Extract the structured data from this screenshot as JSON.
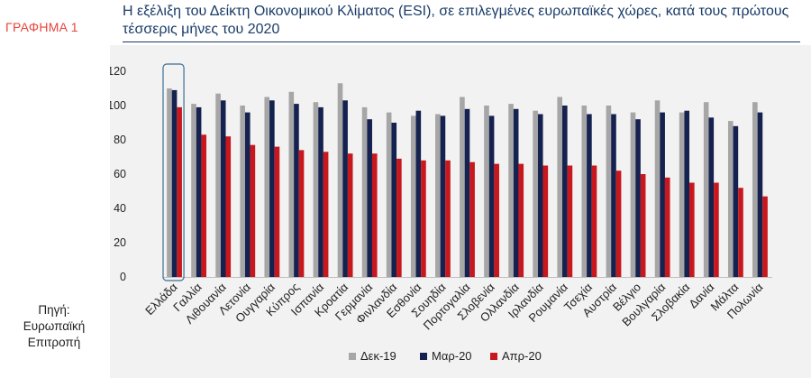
{
  "figure_label": "ΓΡΑΦΗΜΑ 1",
  "source": {
    "line1": "Πηγή:",
    "line2": "Ευρωπαϊκή",
    "line3": "Επιτροπή"
  },
  "chart_data": {
    "type": "bar",
    "title_line1": "Η εξέλιξη του Δείκτη Οικονομικού Κλίματος (ESI), σε επιλεγμένες ευρωπαϊκές χώρες, κατά τους πρώτους",
    "title_line2": "τέσσερις μήνες του 2020",
    "ylim": [
      0,
      120
    ],
    "yticks": [
      0,
      20,
      40,
      60,
      80,
      100,
      120
    ],
    "categories": [
      "Ελλάδα",
      "Γαλλία",
      "Λιθουανία",
      "Λετονία",
      "Ουγγαρία",
      "Κύπρος",
      "Ισπανία",
      "Κροατία",
      "Γερμανία",
      "Φινλανδία",
      "Εσθονία",
      "Σουηδία",
      "Πορτογαλία",
      "Σλοβενία",
      "Ολλανδία",
      "Ιρλανδία",
      "Ρουμανία",
      "Τσεχία",
      "Αυστρία",
      "Βέλγιο",
      "Βουλγαρία",
      "Σλοβακία",
      "Δανία",
      "Μάλτα",
      "Πολωνία"
    ],
    "series": [
      {
        "name": "Δεκ-19",
        "color": "#a6a6a6",
        "values": [
          110,
          101,
          107,
          100,
          105,
          108,
          102,
          113,
          99,
          96,
          94,
          95,
          105,
          100,
          101,
          97,
          105,
          100,
          100,
          96,
          103,
          96,
          102,
          91,
          102
        ]
      },
      {
        "name": "Μαρ-20",
        "color": "#15214f",
        "values": [
          109,
          99,
          103,
          96,
          103,
          101,
          99,
          103,
          92,
          90,
          97,
          94,
          98,
          94,
          98,
          95,
          100,
          95,
          95,
          92,
          96,
          97,
          93,
          88,
          96
        ]
      },
      {
        "name": "Απρ-20",
        "color": "#c8171d",
        "values": [
          99,
          83,
          82,
          77,
          76,
          74,
          73,
          72,
          72,
          69,
          68,
          68,
          67,
          66,
          66,
          65,
          65,
          65,
          62,
          60,
          58,
          55,
          55,
          52,
          47
        ]
      }
    ],
    "highlight_category": "Ελλάδα",
    "legend_position": "bottom",
    "grid": false,
    "xlabel": "",
    "ylabel": ""
  }
}
